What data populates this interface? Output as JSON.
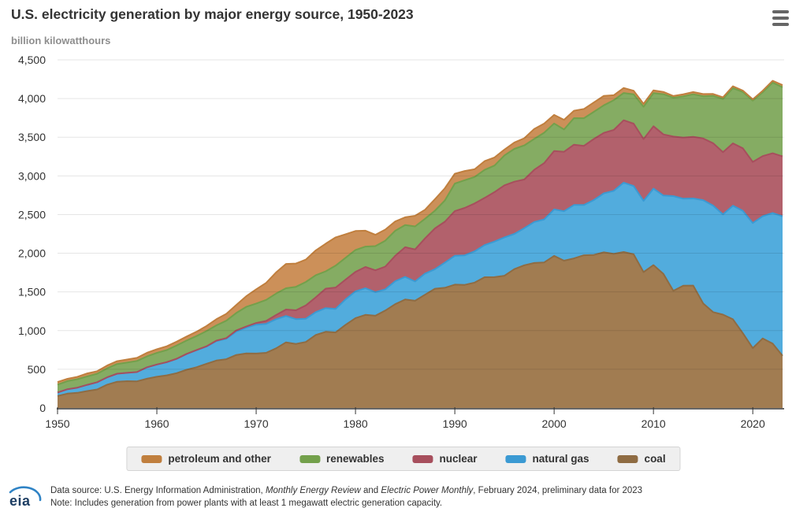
{
  "header": {
    "title": "U.S. electricity generation by major energy source, 1950-2023"
  },
  "chart": {
    "unit_label": "billion kilowatthours"
  },
  "axes": {
    "y_ticks": [
      "0",
      "500",
      "1,000",
      "1,500",
      "2,000",
      "2,500",
      "3,000",
      "3,500",
      "4,000",
      "4,500"
    ],
    "x_ticks": [
      "1950",
      "1960",
      "1970",
      "1980",
      "1990",
      "2000",
      "2010",
      "2020"
    ]
  },
  "footer": {
    "logo_text": "eia",
    "source_prefix": "Data source: U.S. Energy Information Administration, ",
    "source_italic1": "Monthly Energy Review",
    "source_mid": " and ",
    "source_italic2": "Electric Power Monthly",
    "source_suffix": ", February 2024, preliminary data for 2023",
    "note": "Note: Includes generation from power plants with at least 1 megawatt electric generation capacity."
  },
  "chart_data": {
    "type": "area",
    "stacked": true,
    "title": "U.S. electricity generation by major energy source, 1950-2023",
    "xlabel": "",
    "ylabel": "billion kilowatthours",
    "xlim": [
      1950,
      2023
    ],
    "ylim": [
      0,
      4500
    ],
    "grid": true,
    "legend_position": "bottom",
    "x": [
      1950,
      1951,
      1952,
      1953,
      1954,
      1955,
      1956,
      1957,
      1958,
      1959,
      1960,
      1961,
      1962,
      1963,
      1964,
      1965,
      1966,
      1967,
      1968,
      1969,
      1970,
      1971,
      1972,
      1973,
      1974,
      1975,
      1976,
      1977,
      1978,
      1979,
      1980,
      1981,
      1982,
      1983,
      1984,
      1985,
      1986,
      1987,
      1988,
      1989,
      1990,
      1991,
      1992,
      1993,
      1994,
      1995,
      1996,
      1997,
      1998,
      1999,
      2000,
      2001,
      2002,
      2003,
      2004,
      2005,
      2006,
      2007,
      2008,
      2009,
      2010,
      2011,
      2012,
      2013,
      2014,
      2015,
      2016,
      2017,
      2018,
      2019,
      2020,
      2021,
      2022,
      2023
    ],
    "series": [
      {
        "name": "coal",
        "color": "#a17c51",
        "line_color": "#8f6c43",
        "values": [
          155,
          185,
          195,
          219,
          239,
          301,
          339,
          346,
          344,
          378,
          403,
          422,
          450,
          494,
          526,
          571,
          613,
          630,
          685,
          706,
          704,
          713,
          771,
          848,
          828,
          853,
          944,
          985,
          976,
          1075,
          1162,
          1203,
          1192,
          1259,
          1342,
          1402,
          1386,
          1464,
          1541,
          1554,
          1594,
          1591,
          1621,
          1690,
          1691,
          1709,
          1795,
          1845,
          1874,
          1881,
          1966,
          1904,
          1933,
          1974,
          1978,
          2013,
          1991,
          2016,
          1986,
          1756,
          1847,
          1733,
          1514,
          1581,
          1582,
          1352,
          1239,
          1206,
          1146,
          966,
          774,
          899,
          832,
          675
        ]
      },
      {
        "name": "natural gas",
        "color": "#52acdd",
        "line_color": "#3b9ad3",
        "values": [
          45,
          57,
          68,
          80,
          94,
          95,
          104,
          108,
          120,
          147,
          158,
          169,
          184,
          202,
          220,
          222,
          251,
          265,
          304,
          333,
          373,
          374,
          376,
          341,
          320,
          300,
          295,
          306,
          305,
          329,
          346,
          346,
          305,
          274,
          297,
          292,
          249,
          273,
          253,
          325,
          373,
          382,
          404,
          415,
          460,
          496,
          455,
          479,
          531,
          556,
          601,
          639,
          691,
          650,
          710,
          761,
          816,
          897,
          883,
          921,
          988,
          1013,
          1225,
          1124,
          1126,
          1335,
          1378,
          1296,
          1468,
          1582,
          1617,
          1579,
          1689,
          1802
        ]
      },
      {
        "name": "nuclear",
        "color": "#b2616c",
        "line_color": "#a74f5d",
        "values": [
          0,
          0,
          0,
          0,
          0,
          0,
          0,
          0,
          0,
          0,
          1,
          2,
          2,
          3,
          3,
          4,
          6,
          8,
          13,
          14,
          22,
          38,
          54,
          84,
          114,
          173,
          191,
          251,
          276,
          255,
          251,
          273,
          283,
          294,
          328,
          384,
          414,
          455,
          527,
          529,
          577,
          613,
          619,
          610,
          640,
          673,
          675,
          629,
          674,
          728,
          754,
          769,
          780,
          764,
          789,
          782,
          787,
          806,
          806,
          799,
          807,
          790,
          769,
          789,
          797,
          797,
          806,
          805,
          807,
          809,
          790,
          778,
          772,
          775
        ]
      },
      {
        "name": "renewables",
        "color": "#85ac63",
        "line_color": "#73a04b",
        "values": [
          101,
          105,
          109,
          109,
          110,
          116,
          125,
          132,
          144,
          141,
          150,
          155,
          172,
          172,
          181,
          197,
          198,
          225,
          226,
          254,
          251,
          272,
          277,
          275,
          304,
          303,
          287,
          224,
          283,
          283,
          283,
          264,
          312,
          335,
          324,
          287,
          298,
          253,
          229,
          275,
          357,
          358,
          342,
          363,
          343,
          387,
          425,
          441,
          399,
          393,
          356,
          288,
          343,
          358,
          351,
          357,
          385,
          352,
          380,
          417,
          427,
          520,
          502,
          534,
          550,
          546,
          612,
          687,
          713,
          728,
          792,
          826,
          913,
          894
        ]
      },
      {
        "name": "petroleum and other",
        "color": "#cc9059",
        "line_color": "#c07f3e",
        "values": [
          34,
          30,
          30,
          39,
          32,
          37,
          37,
          40,
          40,
          47,
          48,
          49,
          49,
          52,
          56,
          65,
          79,
          89,
          104,
          138,
          184,
          220,
          274,
          314,
          301,
          289,
          320,
          358,
          365,
          304,
          246,
          206,
          147,
          144,
          120,
          100,
          137,
          118,
          149,
          158,
          127,
          119,
          100,
          113,
          105,
          75,
          82,
          93,
          129,
          118,
          111,
          125,
          95,
          119,
          121,
          122,
          64,
          66,
          46,
          39,
          37,
          30,
          23,
          27,
          30,
          28,
          24,
          21,
          25,
          18,
          17,
          19,
          23,
          28
        ]
      }
    ]
  }
}
